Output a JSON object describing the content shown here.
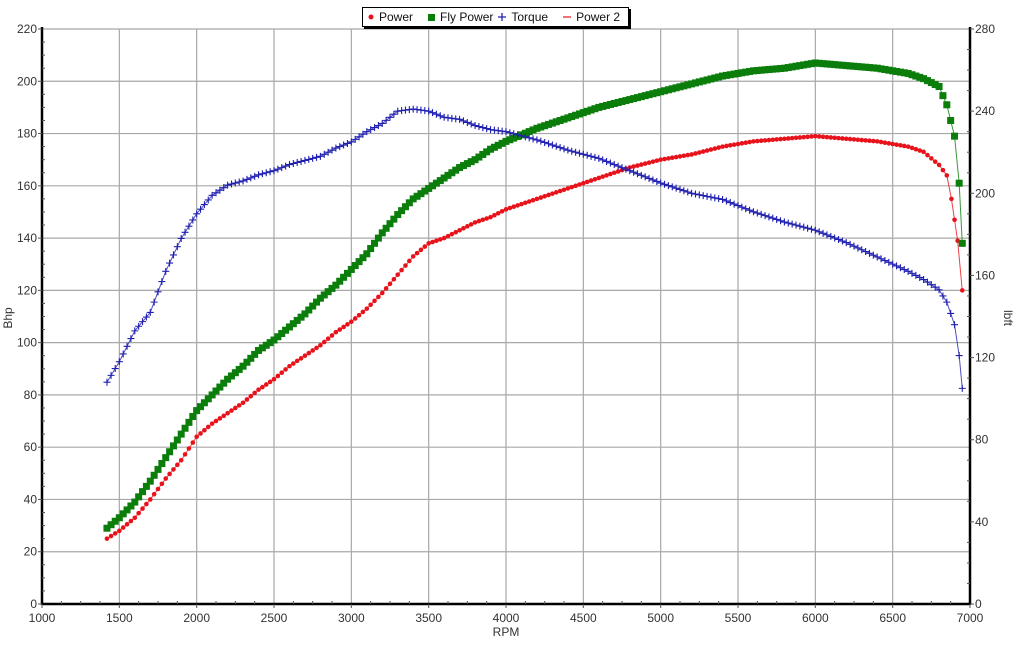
{
  "chart_data": {
    "type": "line",
    "title": "",
    "xlabel": "RPM",
    "ylabel": "Bhp",
    "y2label": "lbft",
    "xlim": [
      1000,
      7000
    ],
    "ylim": [
      0,
      220
    ],
    "y2lim": [
      0,
      280
    ],
    "x_ticks": [
      1000,
      1500,
      2000,
      2500,
      3000,
      3500,
      4000,
      4500,
      5000,
      5500,
      6000,
      6500,
      7000
    ],
    "y_ticks": [
      0,
      20,
      40,
      60,
      80,
      100,
      120,
      140,
      160,
      180,
      200,
      220
    ],
    "y2_ticks": [
      0,
      40,
      80,
      120,
      160,
      200,
      240,
      280
    ],
    "grid": true,
    "legend_position": "top-center",
    "legend": [
      {
        "label": "Power",
        "color": "#e8121b",
        "marker": "dot"
      },
      {
        "label": "Fly Power",
        "color": "#0a7d0a",
        "marker": "square"
      },
      {
        "label": "Torque",
        "color": "#2020b0",
        "marker": "plus"
      },
      {
        "label": "Power 2",
        "color": "#e8121b",
        "marker": "dash"
      }
    ],
    "series": [
      {
        "name": "Power",
        "axis": "left",
        "color": "#e8121b",
        "marker": "dot",
        "x": [
          1420,
          1500,
          1600,
          1700,
          1800,
          1900,
          2000,
          2100,
          2200,
          2300,
          2400,
          2500,
          2600,
          2700,
          2800,
          2900,
          3000,
          3100,
          3200,
          3300,
          3400,
          3500,
          3600,
          3700,
          3800,
          3900,
          4000,
          4200,
          4400,
          4600,
          4800,
          5000,
          5200,
          5400,
          5600,
          5800,
          6000,
          6200,
          6400,
          6600,
          6700,
          6800,
          6850,
          6880,
          6920,
          6950
        ],
        "values": [
          25,
          28,
          33,
          40,
          48,
          55,
          64,
          69,
          73,
          77,
          82,
          86,
          91,
          95,
          99,
          104,
          108,
          113,
          119,
          126,
          133,
          138,
          140,
          143,
          146,
          148,
          151,
          155,
          159,
          163,
          167,
          170,
          172,
          175,
          177,
          178,
          179,
          178,
          177,
          175,
          173,
          168,
          164,
          155,
          139,
          120
        ]
      },
      {
        "name": "Fly Power",
        "axis": "left",
        "color": "#0a7d0a",
        "marker": "square",
        "x": [
          1420,
          1500,
          1600,
          1700,
          1800,
          1900,
          2000,
          2100,
          2200,
          2300,
          2400,
          2500,
          2600,
          2700,
          2800,
          2900,
          3000,
          3100,
          3200,
          3300,
          3400,
          3500,
          3600,
          3700,
          3800,
          3900,
          4000,
          4200,
          4400,
          4600,
          4800,
          5000,
          5200,
          5400,
          5600,
          5800,
          6000,
          6200,
          6400,
          6600,
          6700,
          6800,
          6850,
          6900,
          6930,
          6950
        ],
        "values": [
          29,
          33,
          39,
          47,
          56,
          65,
          74,
          80,
          86,
          91,
          97,
          101,
          106,
          111,
          117,
          122,
          128,
          134,
          142,
          149,
          155,
          159,
          163,
          167,
          170,
          174,
          177,
          182,
          186,
          190,
          193,
          196,
          199,
          202,
          204,
          205,
          207,
          206,
          205,
          203,
          201,
          198,
          191,
          179,
          161,
          138
        ]
      },
      {
        "name": "Torque",
        "axis": "right",
        "color": "#2020b0",
        "marker": "plus",
        "x": [
          1420,
          1500,
          1600,
          1700,
          1800,
          1900,
          2000,
          2100,
          2200,
          2300,
          2400,
          2500,
          2600,
          2700,
          2800,
          2900,
          3000,
          3100,
          3200,
          3300,
          3400,
          3500,
          3600,
          3700,
          3800,
          3900,
          4000,
          4200,
          4400,
          4600,
          4800,
          5000,
          5200,
          5400,
          5600,
          5800,
          6000,
          6200,
          6400,
          6600,
          6700,
          6800,
          6850,
          6900,
          6930,
          6950
        ],
        "values": [
          108,
          118,
          133,
          142,
          162,
          178,
          190,
          199,
          204,
          206,
          209,
          211,
          214,
          216,
          218,
          222,
          225,
          230,
          234,
          240,
          241,
          240,
          237,
          236,
          233,
          231,
          230,
          226,
          221,
          217,
          211,
          205,
          200,
          197,
          191,
          186,
          182,
          176,
          169,
          162,
          158,
          153,
          147,
          136,
          121,
          105
        ]
      }
    ]
  },
  "legend_labels": {
    "power": "Power",
    "fly_power": "Fly Power",
    "torque": "Torque",
    "power2": "Power 2"
  },
  "axis_titles": {
    "x": "RPM",
    "y_left": "Bhp",
    "y_right": "lbft"
  }
}
